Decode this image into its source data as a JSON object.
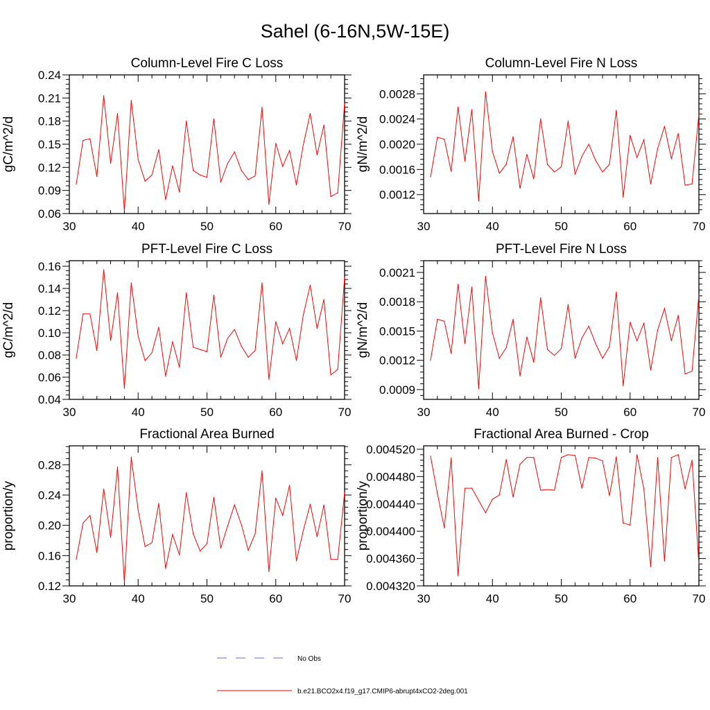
{
  "page_title": "Sahel (6-16N,5W-15E)",
  "colors": {
    "model": "#ff0000",
    "obs": "#6a6acd",
    "axis": "#000000"
  },
  "legend": {
    "entries": [
      {
        "label": "No Obs",
        "style": "dashed",
        "color": "#6a6acd"
      },
      {
        "label": "b.e21.BCO2x4.f19_g17.CMIP6-abrupt4xCO2-2deg.001",
        "style": "solid",
        "color": "#ff0000"
      }
    ]
  },
  "chart_data": [
    {
      "type": "line",
      "title": "Column-Level Fire C Loss",
      "ylabel": "gC/m^2/d",
      "xlabel": "",
      "xlim": [
        30,
        70
      ],
      "ylim": [
        0.06,
        0.24
      ],
      "xticks": [
        30,
        40,
        50,
        60,
        70
      ],
      "yticks": [
        0.06,
        0.09,
        0.12,
        0.15,
        0.18,
        0.21,
        0.24
      ],
      "ytick_labels": [
        "0.06",
        "0.09",
        "0.12",
        "0.15",
        "0.18",
        "0.21",
        "0.24"
      ],
      "grid": false,
      "series": [
        {
          "name": "b.e21.BCO2x4.f19_g17.CMIP6-abrupt4xCO2-2deg.001",
          "x": [
            31,
            32,
            33,
            34,
            35,
            36,
            37,
            38,
            39,
            40,
            41,
            42,
            43,
            44,
            45,
            46,
            47,
            48,
            49,
            50,
            51,
            52,
            53,
            54,
            55,
            56,
            57,
            58,
            59,
            60,
            61,
            62,
            63,
            64,
            65,
            66,
            67,
            68,
            69,
            70
          ],
          "values": [
            0.098,
            0.155,
            0.157,
            0.108,
            0.213,
            0.125,
            0.19,
            0.063,
            0.207,
            0.13,
            0.102,
            0.11,
            0.143,
            0.078,
            0.122,
            0.088,
            0.18,
            0.116,
            0.11,
            0.107,
            0.183,
            0.101,
            0.125,
            0.14,
            0.116,
            0.104,
            0.109,
            0.198,
            0.072,
            0.151,
            0.121,
            0.142,
            0.097,
            0.149,
            0.19,
            0.136,
            0.175,
            0.082,
            0.087,
            0.203
          ]
        }
      ]
    },
    {
      "type": "line",
      "title": "Column-Level Fire N Loss",
      "ylabel": "gN/m^2/d",
      "xlabel": "",
      "xlim": [
        30,
        70
      ],
      "ylim": [
        0.0009,
        0.0031
      ],
      "xticks": [
        30,
        40,
        50,
        60,
        70
      ],
      "yticks": [
        0.0012,
        0.0016,
        0.002,
        0.0024,
        0.0028
      ],
      "ytick_labels": [
        "0.0012",
        "0.0016",
        "0.0020",
        "0.0024",
        "0.0028"
      ],
      "grid": false,
      "series": [
        {
          "name": "b.e21.BCO2x4.f19_g17.CMIP6-abrupt4xCO2-2deg.001",
          "x": [
            31,
            32,
            33,
            34,
            35,
            36,
            37,
            38,
            39,
            40,
            41,
            42,
            43,
            44,
            45,
            46,
            47,
            48,
            49,
            50,
            51,
            52,
            53,
            54,
            55,
            56,
            57,
            58,
            59,
            60,
            61,
            62,
            63,
            64,
            65,
            66,
            67,
            68,
            69,
            70
          ],
          "values": [
            0.00148,
            0.00211,
            0.00208,
            0.00157,
            0.00259,
            0.00173,
            0.00255,
            0.0011,
            0.00283,
            0.00188,
            0.00154,
            0.00168,
            0.00212,
            0.0013,
            0.00184,
            0.00145,
            0.0024,
            0.00168,
            0.00156,
            0.00164,
            0.00237,
            0.00152,
            0.00181,
            0.002,
            0.00174,
            0.00156,
            0.00168,
            0.00254,
            0.00116,
            0.00214,
            0.00179,
            0.00207,
            0.00137,
            0.00193,
            0.00228,
            0.00177,
            0.00217,
            0.00135,
            0.00137,
            0.00248
          ]
        }
      ]
    },
    {
      "type": "line",
      "title": "PFT-Level Fire C Loss",
      "ylabel": "gC/m^2/d",
      "xlabel": "",
      "xlim": [
        30,
        70
      ],
      "ylim": [
        0.04,
        0.165
      ],
      "xticks": [
        30,
        40,
        50,
        60,
        70
      ],
      "yticks": [
        0.04,
        0.06,
        0.08,
        0.1,
        0.12,
        0.14,
        0.16
      ],
      "ytick_labels": [
        "0.04",
        "0.06",
        "0.08",
        "0.10",
        "0.12",
        "0.14",
        "0.16"
      ],
      "grid": false,
      "series": [
        {
          "name": "b.e21.BCO2x4.f19_g17.CMIP6-abrupt4xCO2-2deg.001",
          "x": [
            31,
            32,
            33,
            34,
            35,
            36,
            37,
            38,
            39,
            40,
            41,
            42,
            43,
            44,
            45,
            46,
            47,
            48,
            49,
            50,
            51,
            52,
            53,
            54,
            55,
            56,
            57,
            58,
            59,
            60,
            61,
            62,
            63,
            64,
            65,
            66,
            67,
            68,
            69,
            70
          ],
          "values": [
            0.077,
            0.117,
            0.117,
            0.084,
            0.157,
            0.093,
            0.136,
            0.05,
            0.145,
            0.097,
            0.075,
            0.082,
            0.105,
            0.061,
            0.092,
            0.069,
            0.136,
            0.087,
            0.085,
            0.083,
            0.134,
            0.078,
            0.095,
            0.103,
            0.088,
            0.078,
            0.084,
            0.145,
            0.058,
            0.11,
            0.09,
            0.104,
            0.075,
            0.116,
            0.143,
            0.104,
            0.13,
            0.062,
            0.067,
            0.15
          ]
        }
      ]
    },
    {
      "type": "line",
      "title": "PFT-Level Fire N Loss",
      "ylabel": "gN/m^2/d",
      "xlabel": "",
      "xlim": [
        30,
        70
      ],
      "ylim": [
        0.0008,
        0.00222
      ],
      "xticks": [
        30,
        40,
        50,
        60,
        70
      ],
      "yticks": [
        0.0009,
        0.0012,
        0.0015,
        0.0018,
        0.0021
      ],
      "ytick_labels": [
        "0.0009",
        "0.0012",
        "0.0015",
        "0.0018",
        "0.0021"
      ],
      "grid": false,
      "series": [
        {
          "name": "b.e21.BCO2x4.f19_g17.CMIP6-abrupt4xCO2-2deg.001",
          "x": [
            31,
            32,
            33,
            34,
            35,
            36,
            37,
            38,
            39,
            40,
            41,
            42,
            43,
            44,
            45,
            46,
            47,
            48,
            49,
            50,
            51,
            52,
            53,
            54,
            55,
            56,
            57,
            58,
            59,
            60,
            61,
            62,
            63,
            64,
            65,
            66,
            67,
            68,
            69,
            70
          ],
          "values": [
            0.0012,
            0.00162,
            0.0016,
            0.00127,
            0.00198,
            0.00137,
            0.00195,
            0.00091,
            0.00206,
            0.00148,
            0.00122,
            0.00133,
            0.00162,
            0.00104,
            0.00144,
            0.00118,
            0.00184,
            0.00131,
            0.00125,
            0.00132,
            0.00177,
            0.00122,
            0.00143,
            0.00155,
            0.00137,
            0.00122,
            0.00134,
            0.0019,
            0.00094,
            0.00159,
            0.0014,
            0.00158,
            0.0011,
            0.00151,
            0.00173,
            0.0014,
            0.00166,
            0.00106,
            0.00109,
            0.00187
          ]
        }
      ]
    },
    {
      "type": "line",
      "title": "Fractional Area Burned",
      "ylabel": "proportion/y",
      "xlabel": "",
      "xlim": [
        30,
        70
      ],
      "ylim": [
        0.12,
        0.305
      ],
      "xticks": [
        30,
        40,
        50,
        60,
        70
      ],
      "yticks": [
        0.12,
        0.16,
        0.2,
        0.24,
        0.28
      ],
      "ytick_labels": [
        "0.12",
        "0.16",
        "0.20",
        "0.24",
        "0.28"
      ],
      "grid": false,
      "series": [
        {
          "name": "b.e21.BCO2x4.f19_g17.CMIP6-abrupt4xCO2-2deg.001",
          "x": [
            31,
            32,
            33,
            34,
            35,
            36,
            37,
            38,
            39,
            40,
            41,
            42,
            43,
            44,
            45,
            46,
            47,
            48,
            49,
            50,
            51,
            52,
            53,
            54,
            55,
            56,
            57,
            58,
            59,
            60,
            61,
            62,
            63,
            64,
            65,
            66,
            67,
            68,
            69,
            70
          ],
          "values": [
            0.155,
            0.203,
            0.213,
            0.164,
            0.248,
            0.184,
            0.277,
            0.124,
            0.29,
            0.22,
            0.172,
            0.177,
            0.229,
            0.143,
            0.188,
            0.161,
            0.243,
            0.189,
            0.166,
            0.176,
            0.237,
            0.17,
            0.199,
            0.227,
            0.201,
            0.167,
            0.189,
            0.272,
            0.139,
            0.236,
            0.213,
            0.253,
            0.153,
            0.193,
            0.228,
            0.185,
            0.227,
            0.155,
            0.155,
            0.243
          ]
        }
      ]
    },
    {
      "type": "line",
      "title": "Fractional Area Burned - Crop",
      "ylabel": "proportion/y",
      "xlabel": "",
      "xlim": [
        30,
        70
      ],
      "ylim": [
        0.00432,
        0.004525
      ],
      "xticks": [
        30,
        40,
        50,
        60,
        70
      ],
      "yticks": [
        0.00432,
        0.00436,
        0.0044,
        0.00444,
        0.00448,
        0.00452
      ],
      "ytick_labels": [
        "0.004320",
        "0.004360",
        "0.004400",
        "0.004440",
        "0.004480",
        "0.004520"
      ],
      "grid": false,
      "series": [
        {
          "name": "b.e21.BCO2x4.f19_g17.CMIP6-abrupt4xCO2-2deg.001",
          "x": [
            31,
            32,
            33,
            34,
            35,
            36,
            37,
            38,
            39,
            40,
            41,
            42,
            43,
            44,
            45,
            46,
            47,
            48,
            49,
            50,
            51,
            52,
            53,
            54,
            55,
            56,
            57,
            58,
            59,
            60,
            61,
            62,
            63,
            64,
            65,
            66,
            67,
            68,
            69,
            70
          ],
          "values": [
            0.00451,
            0.004455,
            0.004405,
            0.004507,
            0.004335,
            0.004463,
            0.004463,
            0.004445,
            0.004427,
            0.004447,
            0.004453,
            0.004505,
            0.00445,
            0.004498,
            0.004508,
            0.004508,
            0.00446,
            0.004461,
            0.00446,
            0.004508,
            0.004512,
            0.004511,
            0.004463,
            0.004508,
            0.004507,
            0.004503,
            0.004452,
            0.004509,
            0.004412,
            0.004409,
            0.004512,
            0.004462,
            0.004348,
            0.004508,
            0.004356,
            0.004508,
            0.004512,
            0.004462,
            0.004504,
            0.004352
          ]
        }
      ]
    }
  ]
}
